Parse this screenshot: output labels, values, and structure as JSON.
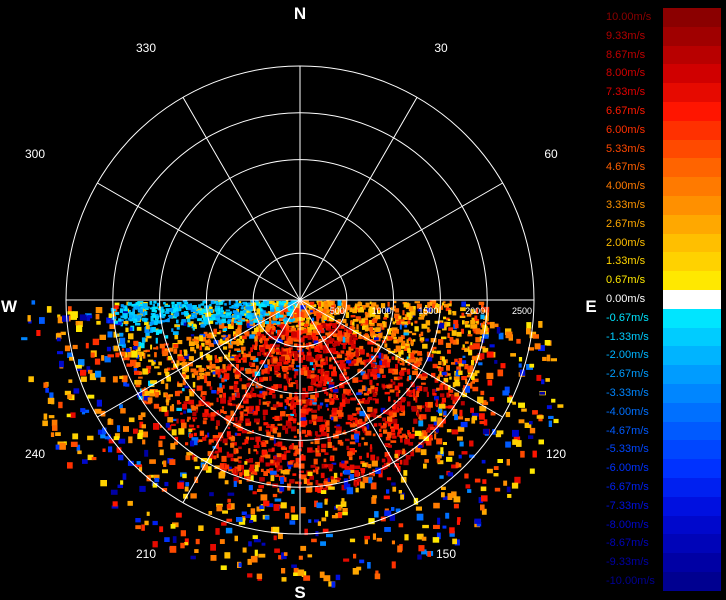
{
  "compass": {
    "n": "N",
    "e": "E",
    "s": "S",
    "w": "W"
  },
  "bearings": [
    "30",
    "60",
    "120",
    "150",
    "210",
    "240",
    "300",
    "330"
  ],
  "range_labels": [
    "500",
    "1000",
    "1500",
    "2000",
    "2500"
  ],
  "colors": {
    "background": "#000000",
    "grid": "#ffffff"
  },
  "legend": [
    {
      "label": "10.00m/s",
      "color": "#8b0000",
      "text": "#8b0000"
    },
    {
      "label": "9.33m/s",
      "color": "#a00000",
      "text": "#b00000"
    },
    {
      "label": "8.67m/s",
      "color": "#b80000",
      "text": "#c00000"
    },
    {
      "label": "8.00m/s",
      "color": "#d00000",
      "text": "#d00000"
    },
    {
      "label": "7.33m/s",
      "color": "#e60a00",
      "text": "#e00000"
    },
    {
      "label": "6.67m/s",
      "color": "#ff1500",
      "text": "#ff1a00"
    },
    {
      "label": "6.00m/s",
      "color": "#ff3000",
      "text": "#ff3000"
    },
    {
      "label": "5.33m/s",
      "color": "#ff4a00",
      "text": "#ff4800"
    },
    {
      "label": "4.67m/s",
      "color": "#ff6400",
      "text": "#ff6000"
    },
    {
      "label": "4.00m/s",
      "color": "#ff7a00",
      "text": "#ff7a00"
    },
    {
      "label": "3.33m/s",
      "color": "#ff9000",
      "text": "#ff9400"
    },
    {
      "label": "2.67m/s",
      "color": "#ffa800",
      "text": "#ffa800"
    },
    {
      "label": "2.00m/s",
      "color": "#ffbf00",
      "text": "#ffbf00"
    },
    {
      "label": "1.33m/s",
      "color": "#ffd200",
      "text": "#ffd400"
    },
    {
      "label": "0.67m/s",
      "color": "#ffe800",
      "text": "#ffe800"
    },
    {
      "label": "0.00m/s",
      "color": "#ffffff",
      "text": "#ffffff"
    },
    {
      "label": "-0.67m/s",
      "color": "#00e5ff",
      "text": "#00e5ff"
    },
    {
      "label": "-1.33m/s",
      "color": "#00ccff",
      "text": "#00ccff"
    },
    {
      "label": "-2.00m/s",
      "color": "#00b4ff",
      "text": "#00b4ff"
    },
    {
      "label": "-2.67m/s",
      "color": "#009cff",
      "text": "#009cff"
    },
    {
      "label": "-3.33m/s",
      "color": "#0086ff",
      "text": "#0086ff"
    },
    {
      "label": "-4.00m/s",
      "color": "#0070ff",
      "text": "#0070ff"
    },
    {
      "label": "-4.67m/s",
      "color": "#005aff",
      "text": "#005aff"
    },
    {
      "label": "-5.33m/s",
      "color": "#0046ff",
      "text": "#0046ff"
    },
    {
      "label": "-6.00m/s",
      "color": "#0032ff",
      "text": "#0032ff"
    },
    {
      "label": "-6.67m/s",
      "color": "#0020f0",
      "text": "#0020f0"
    },
    {
      "label": "-7.33m/s",
      "color": "#0010e0",
      "text": "#0010e0"
    },
    {
      "label": "-8.00m/s",
      "color": "#0008cc",
      "text": "#0008cc"
    },
    {
      "label": "-8.67m/s",
      "color": "#0004b8",
      "text": "#0004b8"
    },
    {
      "label": "-9.33m/s",
      "color": "#0000a4",
      "text": "#0000a4"
    },
    {
      "label": "-10.00m/s",
      "color": "#000090",
      "text": "#000090"
    }
  ]
}
